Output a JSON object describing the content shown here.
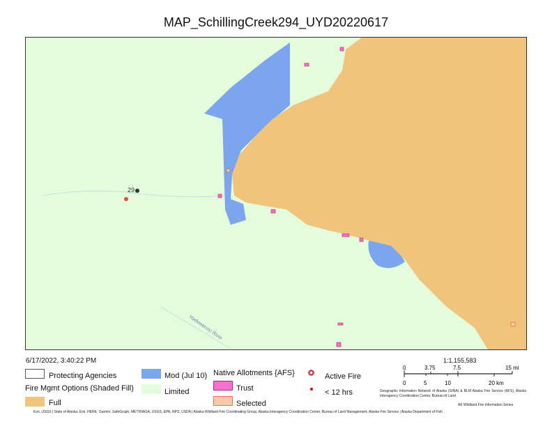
{
  "title": "MAP_SchillingCreek294_UYD20220617",
  "map": {
    "fire_label": "29",
    "river_label": "Hadweenzic River",
    "colors": {
      "limited": "#e4fbdc",
      "full": "#f0c47c",
      "mod": "#7ba6ee",
      "trust": "#f472cf",
      "selected": "#fcc9b0",
      "active_fire": "#c0263b"
    }
  },
  "timestamp": "6/17/2022, 3:40:22 PM",
  "legend": {
    "protecting_agencies": "Protecting Agencies",
    "fire_mgmt_heading": "Fire Mgmt Options (Shaded Fill)",
    "full": "Full",
    "mod": "Mod (Jul 10)",
    "limited": "Limited",
    "native_heading": "Native Allotments {AFS}",
    "trust": "Trust",
    "selected": "Selected",
    "active_fire": "Active Fire",
    "lt12": "< 12 hrs"
  },
  "scale": {
    "ratio": "1:1,155,583",
    "mi_ticks": [
      "0",
      "3.75",
      "7.5",
      "15 mi"
    ],
    "km_ticks": [
      "0",
      "5",
      "10",
      "20 km"
    ]
  },
  "credits": {
    "gina": "Geographic Information Network of Alaska (GINA) & BLM Alaska Fire Service (AFS), Alaska Interagency Coordination Center, Bureau of Land",
    "series": "AK Wildland Fire Information Series",
    "attribution": "Esri, USGS | State of Alaska, Esri, HERE, Garmin, SafeGraph, METI/NASA, USGS, EPA, NPS, USDA | Alaska Wildland Fire Coordinating Group, Alaska Interagency Coordination Center, Bureau of Land Management, Alaska Fire Service | Alaska Department of Fish"
  }
}
